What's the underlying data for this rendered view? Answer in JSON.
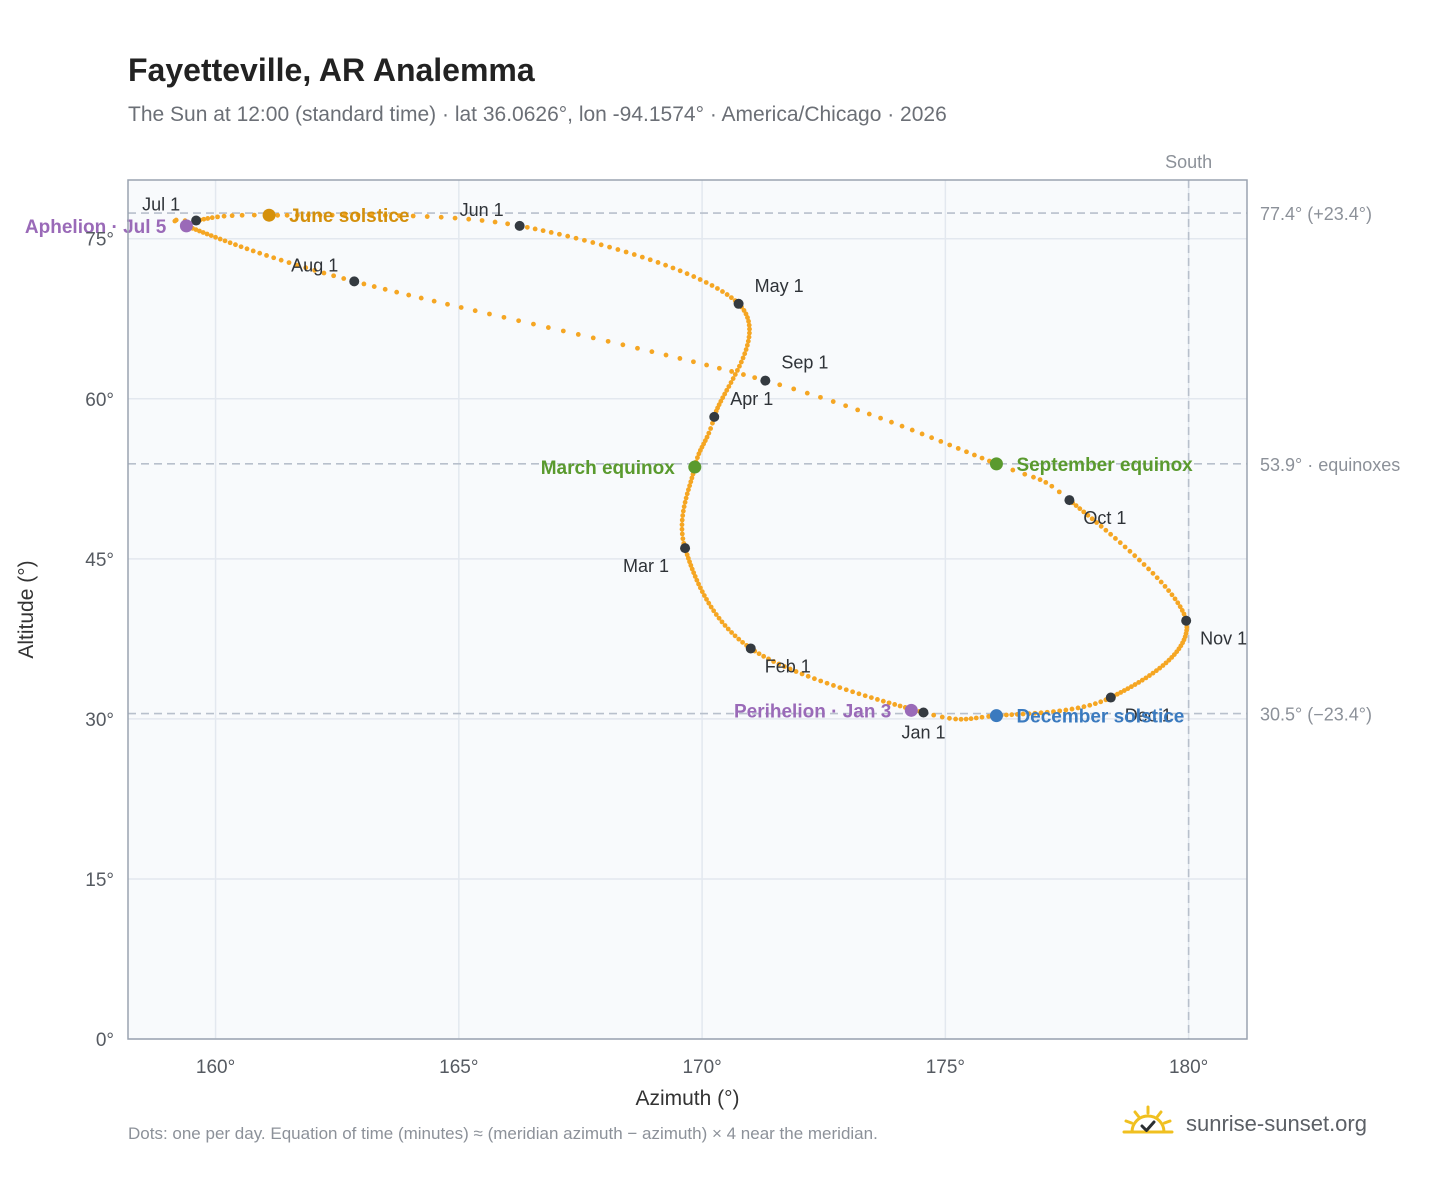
{
  "title": "Fayetteville, AR Analemma",
  "subtitle": "The Sun at 12:00 (standard time) · lat 36.0626°, lon -94.1574° · America/Chicago · 2026",
  "footnote": "Dots: one per day. Equation of time (minutes) ≈ (meridian azimuth − azimuth) × 4 near the meridian.",
  "brand": "sunrise-sunset.org",
  "colors": {
    "path": "#f5a623",
    "month_dot": "#343a40",
    "june_solstice": "#d4900c",
    "equinox": "#5a9a2e",
    "december_solstice": "#3a7abf",
    "apsis": "#9a6ab8",
    "reference": "#b8c0cc",
    "grid": "#e3e8ef",
    "plot_bg": "#f8fafc",
    "frame": "#9aa3b0"
  },
  "chart_data": {
    "type": "scatter",
    "xlabel": "Azimuth (°)",
    "ylabel": "Altitude (°)",
    "xlim": [
      158.2,
      181.2
    ],
    "ylim": [
      0,
      80.5
    ],
    "x_ticks": [
      {
        "value": 160,
        "label": "160°"
      },
      {
        "value": 165,
        "label": "165°"
      },
      {
        "value": 170,
        "label": "170°"
      },
      {
        "value": 175,
        "label": "175°"
      },
      {
        "value": 180,
        "label": "180°"
      }
    ],
    "y_ticks": [
      {
        "value": 0,
        "label": "0°"
      },
      {
        "value": 15,
        "label": "15°"
      },
      {
        "value": 30,
        "label": "30°"
      },
      {
        "value": 45,
        "label": "45°"
      },
      {
        "value": 60,
        "label": "60°"
      },
      {
        "value": 75,
        "label": "75°"
      }
    ],
    "grid": true,
    "meridian": {
      "azimuth": 180,
      "label": "South"
    },
    "reference_lines": [
      {
        "altitude": 77.4,
        "label": "77.4° (+23.4°)"
      },
      {
        "altitude": 53.9,
        "label": "53.9° · equinoxes"
      },
      {
        "altitude": 30.5,
        "label": "30.5° (−23.4°)"
      }
    ],
    "path_anchors": [
      {
        "day": 1,
        "az": 174.55,
        "alt": 30.6
      },
      {
        "day": 32,
        "az": 171.0,
        "alt": 36.6
      },
      {
        "day": 60,
        "az": 169.65,
        "alt": 46.0
      },
      {
        "day": 79,
        "az": 169.85,
        "alt": 53.6
      },
      {
        "day": 91,
        "az": 170.25,
        "alt": 58.3
      },
      {
        "day": 121,
        "az": 170.75,
        "alt": 68.9
      },
      {
        "day": 152,
        "az": 166.25,
        "alt": 76.2
      },
      {
        "day": 172,
        "az": 161.1,
        "alt": 77.2
      },
      {
        "day": 182,
        "az": 159.6,
        "alt": 76.7
      },
      {
        "day": 186,
        "az": 159.4,
        "alt": 76.2
      },
      {
        "day": 213,
        "az": 162.85,
        "alt": 71.0
      },
      {
        "day": 244,
        "az": 171.3,
        "alt": 61.7
      },
      {
        "day": 266,
        "az": 176.05,
        "alt": 53.9
      },
      {
        "day": 274,
        "az": 177.55,
        "alt": 50.5
      },
      {
        "day": 305,
        "az": 179.95,
        "alt": 39.2
      },
      {
        "day": 335,
        "az": 178.4,
        "alt": 32.0
      },
      {
        "day": 355,
        "az": 176.05,
        "alt": 30.3
      },
      {
        "day": 366,
        "az": 174.55,
        "alt": 30.6
      }
    ],
    "months": [
      {
        "label": "Jan 1",
        "az": 174.55,
        "alt": 30.6,
        "anchor": "below"
      },
      {
        "label": "Feb 1",
        "az": 171.0,
        "alt": 36.6,
        "anchor": "below-right"
      },
      {
        "label": "Mar 1",
        "az": 169.65,
        "alt": 46.0,
        "anchor": "below-left"
      },
      {
        "label": "Apr 1",
        "az": 170.25,
        "alt": 58.3,
        "anchor": "above-right"
      },
      {
        "label": "May 1",
        "az": 170.75,
        "alt": 68.9,
        "anchor": "above-right"
      },
      {
        "label": "Jun 1",
        "az": 166.25,
        "alt": 76.2,
        "anchor": "above-left"
      },
      {
        "label": "Jul 1",
        "az": 159.6,
        "alt": 76.7,
        "anchor": "above-left"
      },
      {
        "label": "Aug 1",
        "az": 162.85,
        "alt": 71.0,
        "anchor": "above-left"
      },
      {
        "label": "Sep 1",
        "az": 171.3,
        "alt": 61.7,
        "anchor": "above-right"
      },
      {
        "label": "Oct 1",
        "az": 177.55,
        "alt": 50.5,
        "anchor": "below-right"
      },
      {
        "label": "Nov 1",
        "az": 179.95,
        "alt": 39.2,
        "anchor": "below-right"
      },
      {
        "label": "Dec 1",
        "az": 178.4,
        "alt": 32.0,
        "anchor": "below-right"
      }
    ],
    "events": [
      {
        "label": "June solstice",
        "az": 161.1,
        "alt": 77.2,
        "kind": "june_solstice",
        "side": "right"
      },
      {
        "label": "March equinox",
        "az": 169.85,
        "alt": 53.6,
        "kind": "equinox",
        "side": "left"
      },
      {
        "label": "September equinox",
        "az": 176.05,
        "alt": 53.9,
        "kind": "equinox",
        "side": "right"
      },
      {
        "label": "December solstice",
        "az": 176.05,
        "alt": 30.3,
        "kind": "december_solstice",
        "side": "right"
      },
      {
        "label": "Aphelion · Jul 5",
        "az": 159.4,
        "alt": 76.2,
        "kind": "apsis",
        "side": "left"
      },
      {
        "label": "Perihelion · Jan 3",
        "az": 174.3,
        "alt": 30.8,
        "kind": "apsis",
        "side": "left"
      }
    ]
  }
}
